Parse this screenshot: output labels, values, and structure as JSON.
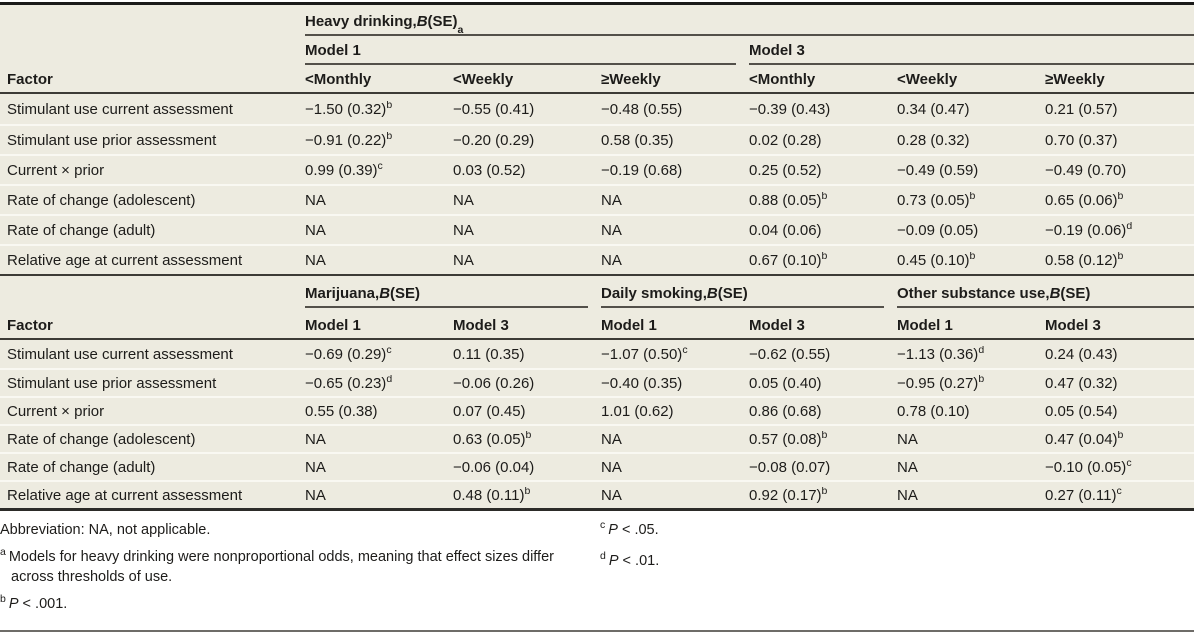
{
  "table1": {
    "factor_header": "Factor",
    "group": {
      "prefix": "Heavy drinking, ",
      "italic": "B",
      "suffix": " (SE)",
      "sup": "a"
    },
    "model1_label": "Model 1",
    "model3_label": "Model 3",
    "subheaders": [
      "<Monthly",
      "<Weekly",
      "≥Weekly",
      "<Monthly",
      "<Weekly",
      "≥Weekly"
    ],
    "rows": [
      {
        "factor": "Stimulant use current assessment",
        "values": [
          "−1.50 (0.32)^b",
          "−0.55 (0.41)",
          "−0.48 (0.55)",
          "−0.39 (0.43)",
          "0.34 (0.47)",
          "0.21 (0.57)"
        ]
      },
      {
        "factor": "Stimulant use prior assessment",
        "values": [
          "−0.91 (0.22)^b",
          "−0.20 (0.29)",
          "0.58 (0.35)",
          "0.02 (0.28)",
          "0.28 (0.32)",
          "0.70 (0.37)"
        ]
      },
      {
        "factor": "Current × prior",
        "values": [
          "0.99 (0.39)^c",
          "0.03 (0.52)",
          "−0.19 (0.68)",
          "0.25 (0.52)",
          "−0.49 (0.59)",
          "−0.49 (0.70)"
        ]
      },
      {
        "factor": "Rate of change (adolescent)",
        "values": [
          "NA",
          "NA",
          "NA",
          "0.88 (0.05)^b",
          "0.73 (0.05)^b",
          "0.65 (0.06)^b"
        ]
      },
      {
        "factor": "Rate of change (adult)",
        "values": [
          "NA",
          "NA",
          "NA",
          "0.04 (0.06)",
          "−0.09 (0.05)",
          "−0.19 (0.06)^d"
        ]
      },
      {
        "factor": "Relative age at current assessment",
        "values": [
          "NA",
          "NA",
          "NA",
          "0.67 (0.10)^b",
          "0.45 (0.10)^b",
          "0.58 (0.12)^b"
        ]
      }
    ]
  },
  "table2": {
    "factor_header": "Factor",
    "groups": [
      {
        "prefix": "Marijuana, ",
        "italic": "B",
        "suffix": " (SE)"
      },
      {
        "prefix": "Daily smoking, ",
        "italic": "B",
        "suffix": " (SE)"
      },
      {
        "prefix": "Other substance use, ",
        "italic": "B",
        "suffix": " (SE)"
      }
    ],
    "subheaders": [
      "Model 1",
      "Model 3",
      "Model 1",
      "Model 3",
      "Model 1",
      "Model 3"
    ],
    "rows": [
      {
        "factor": "Stimulant use current assessment",
        "values": [
          "−0.69 (0.29)^c",
          "0.11 (0.35)",
          "−1.07 (0.50)^c",
          "−0.62 (0.55)",
          "−1.13 (0.36)^d",
          "0.24 (0.43)"
        ]
      },
      {
        "factor": "Stimulant use prior assessment",
        "values": [
          "−0.65 (0.23)^d",
          "−0.06 (0.26)",
          "−0.40 (0.35)",
          "0.05 (0.40)",
          "−0.95 (0.27)^b",
          "0.47 (0.32)"
        ]
      },
      {
        "factor": "Current × prior",
        "values": [
          "0.55 (0.38)",
          "0.07 (0.45)",
          "1.01 (0.62)",
          "0.86 (0.68)",
          "0.78 (0.10)",
          "0.05 (0.54)"
        ]
      },
      {
        "factor": "Rate of change (adolescent)",
        "values": [
          "NA",
          "0.63 (0.05)^b",
          "NA",
          "0.57 (0.08)^b",
          "NA",
          "0.47 (0.04)^b"
        ]
      },
      {
        "factor": "Rate of change (adult)",
        "values": [
          "NA",
          "−0.06 (0.04)",
          "NA",
          "−0.08 (0.07)",
          "NA",
          "−0.10 (0.05)^c"
        ]
      },
      {
        "factor": "Relative age at current assessment",
        "values": [
          "NA",
          "0.48 (0.11)^b",
          "NA",
          "0.92 (0.17)^b",
          "NA",
          "0.27 (0.11)^c"
        ]
      }
    ]
  },
  "footnotes": {
    "abbreviation": "Abbreviation: NA, not applicable.",
    "left": [
      {
        "sup": "a",
        "text": "Models for heavy drinking were nonproportional odds, meaning that effect sizes differ across thresholds of use."
      },
      {
        "sup": "b",
        "italic": "P",
        "text": " < .001."
      }
    ],
    "right": [
      {
        "sup": "c",
        "italic": "P",
        "text": " < .05."
      },
      {
        "sup": "d",
        "italic": "P",
        "text": " < .01."
      }
    ]
  }
}
